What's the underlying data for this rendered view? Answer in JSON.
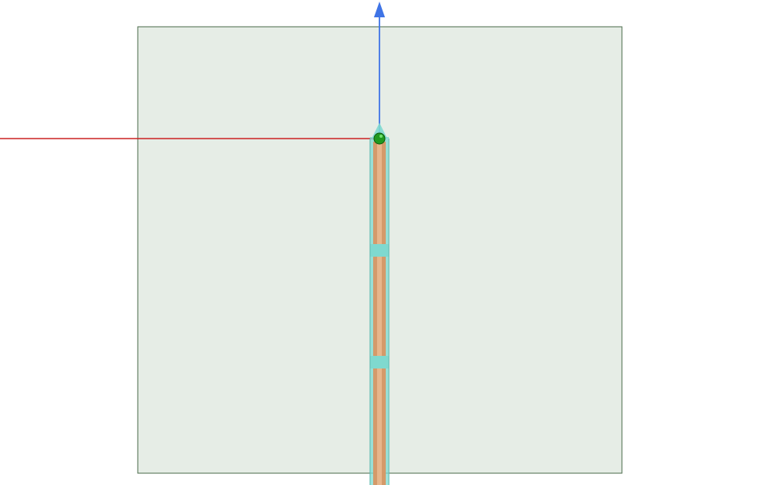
{
  "viewport": {
    "background": "#ffffff"
  },
  "scene": {
    "ground_plane": {
      "fill": "#e6ede6",
      "stroke": "#4a6a4a"
    },
    "x_axis": {
      "color": "#cc2222"
    },
    "z_axis": {
      "color": "#3f74e6"
    },
    "probe_shaft": {
      "sheath_color": "#7fd9cf",
      "core_color": "#d49a6a",
      "core_highlight": "#e9b98f",
      "segment_count": 3
    },
    "origin_marker": {
      "color": "#1f9a1f"
    },
    "icons": [
      "x-axis-icon",
      "z-axis-arrow-icon",
      "origin-marker-icon"
    ]
  }
}
